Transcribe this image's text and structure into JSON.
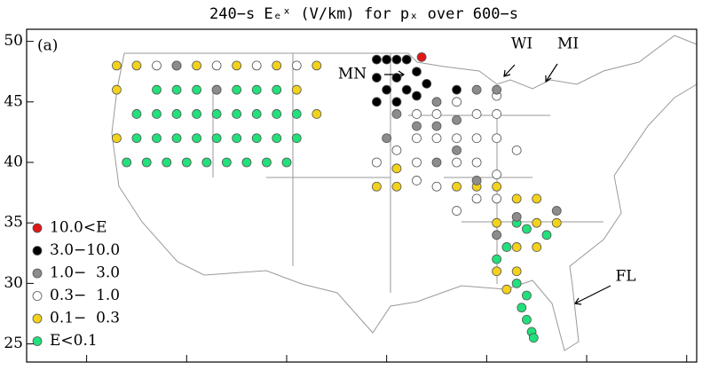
{
  "chart_data": {
    "type": "scatter",
    "title": "240−s Eₑˣ (V/km) for pₓ over 600−s",
    "panel_label": "(a)",
    "annotations": [
      "MN",
      "WI",
      "MI",
      "FL"
    ],
    "xlim": [
      -131,
      -64
    ],
    "ylim": [
      23.5,
      51
    ],
    "xticks": [
      -125,
      -115,
      -105,
      -95,
      -85,
      -75,
      -65
    ],
    "yticks": [
      25,
      30,
      35,
      40,
      45,
      50
    ],
    "series": [
      {
        "name": "E<0.1",
        "color": "#22e07a",
        "x": [
          -118,
          -116,
          -114,
          -112,
          -110,
          -108,
          -106,
          -120,
          -118,
          -116,
          -114,
          -112,
          -110,
          -108,
          -106,
          -104,
          -120,
          -118,
          -116,
          -114,
          -112,
          -110,
          -108,
          -106,
          -104,
          -121,
          -119,
          -117,
          -115,
          -113,
          -111,
          -109,
          -107,
          -105,
          -82,
          -83,
          -84,
          -82,
          -81.5,
          -81,
          -80.5,
          -80.3,
          -81,
          -79,
          -81
        ],
        "y": [
          46,
          46,
          46,
          46,
          46,
          46,
          46,
          44,
          44,
          44,
          44,
          44,
          44,
          44,
          44,
          44,
          42,
          42,
          42,
          42,
          42,
          42,
          42,
          42,
          42,
          40,
          40,
          40,
          40,
          40,
          40,
          40,
          40,
          40,
          35,
          33,
          32,
          30,
          28,
          27,
          26,
          25.5,
          29,
          34,
          34.5
        ]
      },
      {
        "name": "0.1−  0.3",
        "color": "#f2d21b",
        "x": [
          -122,
          -120,
          -114,
          -110,
          -106,
          -102,
          -122,
          -104,
          -102,
          -122,
          -96,
          -94,
          -88,
          -86,
          -84,
          -82,
          -80,
          -84,
          -80,
          -78,
          -82,
          -80,
          -84,
          -82,
          -83,
          -94
        ],
        "y": [
          48,
          48,
          48,
          48,
          48,
          48,
          46,
          46,
          44,
          42,
          38,
          38,
          38,
          38,
          38,
          37,
          37,
          35,
          35,
          35,
          33,
          33,
          31,
          31,
          29.5,
          39.5
        ]
      },
      {
        "name": "0.3−  1.0",
        "color": "#ffffff",
        "x": [
          -118,
          -116,
          -112,
          -108,
          -104,
          -92,
          -90,
          -88,
          -86,
          -84,
          -92,
          -90,
          -88,
          -86,
          -84,
          -82,
          -94,
          -96,
          -92,
          -88,
          -86,
          -84,
          -90,
          -86,
          -84,
          -88,
          -84,
          -92
        ],
        "y": [
          48,
          48,
          48,
          48,
          48,
          44,
          44,
          45,
          44,
          44,
          42,
          42,
          42,
          42,
          42,
          41,
          41,
          40,
          40,
          40,
          40,
          39,
          38,
          37,
          37,
          36,
          45.5,
          38.5
        ]
      },
      {
        "name": "1.0−  3.0",
        "color": "#8c8c8c",
        "x": [
          -94,
          -90,
          -92,
          -90,
          -88,
          -88,
          -86,
          -84,
          -95,
          -90,
          -86,
          -82,
          -78,
          -84,
          -116,
          -112
        ],
        "y": [
          44,
          45,
          43,
          43,
          43.5,
          41,
          46,
          46,
          42,
          40,
          38.5,
          35.5,
          36,
          34,
          48,
          46
        ]
      },
      {
        "name": "3.0−10.0",
        "color": "#000000",
        "x": [
          -96,
          -95,
          -94,
          -93,
          -92,
          -94,
          -96,
          -95,
          -93,
          -91,
          -94,
          -96,
          -92,
          -88
        ],
        "y": [
          48.5,
          48.5,
          48.5,
          48.5,
          47.5,
          47,
          47,
          46,
          46,
          46.5,
          45,
          45,
          45.5,
          46
        ]
      },
      {
        "name": "10.0<E",
        "color": "#e01818",
        "x": [
          -91.5
        ],
        "y": [
          48.7
        ]
      }
    ]
  }
}
